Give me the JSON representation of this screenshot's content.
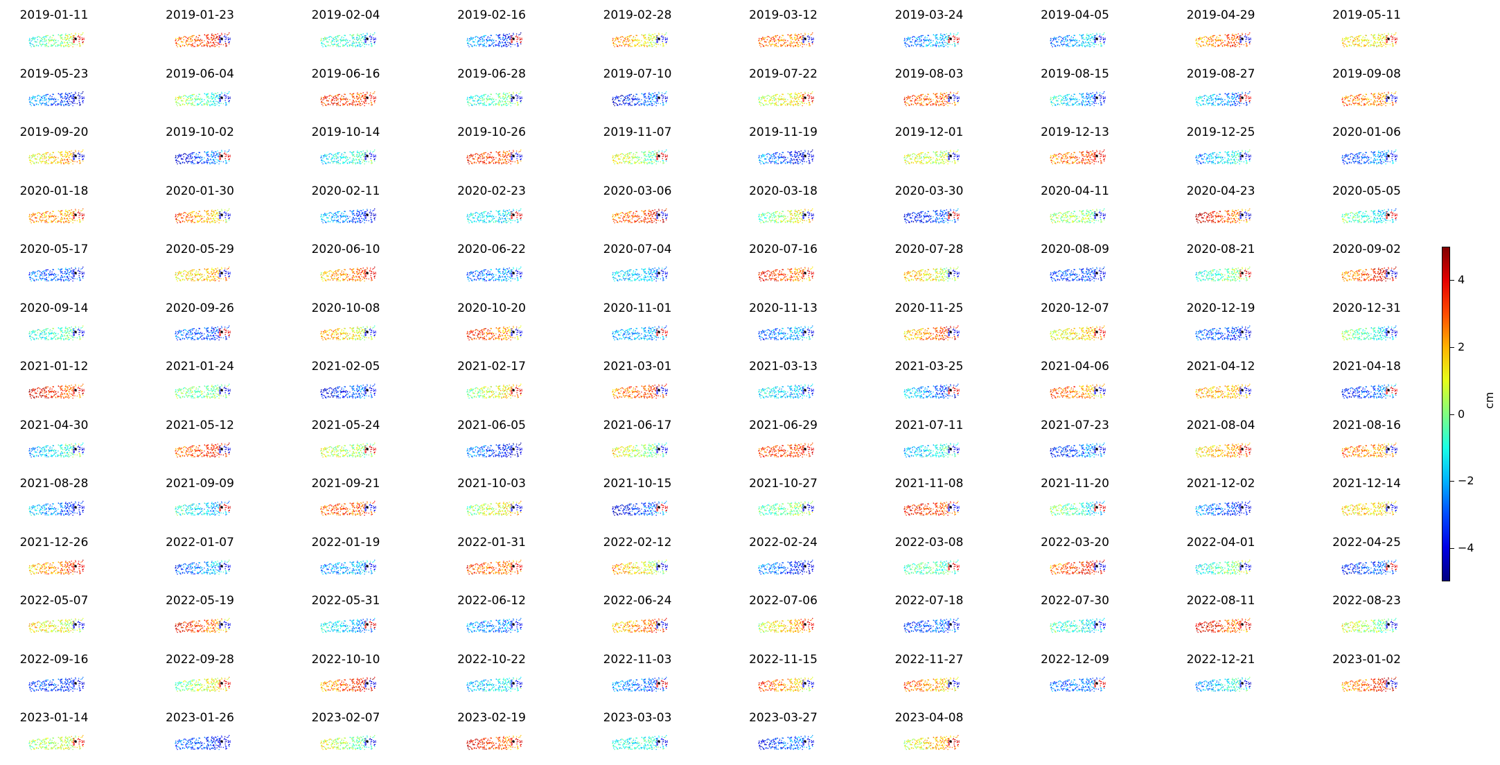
{
  "chart_data": {
    "type": "scatter",
    "layout": "small-multiples",
    "panels": [
      "2019-01-11",
      "2019-01-23",
      "2019-02-04",
      "2019-02-16",
      "2019-02-28",
      "2019-03-12",
      "2019-03-24",
      "2019-04-05",
      "2019-04-29",
      "2019-05-11",
      "2019-05-23",
      "2019-06-04",
      "2019-06-16",
      "2019-06-28",
      "2019-07-10",
      "2019-07-22",
      "2019-08-03",
      "2019-08-15",
      "2019-08-27",
      "2019-09-08",
      "2019-09-20",
      "2019-10-02",
      "2019-10-14",
      "2019-10-26",
      "2019-11-07",
      "2019-11-19",
      "2019-12-01",
      "2019-12-13",
      "2019-12-25",
      "2020-01-06",
      "2020-01-18",
      "2020-01-30",
      "2020-02-11",
      "2020-02-23",
      "2020-03-06",
      "2020-03-18",
      "2020-03-30",
      "2020-04-11",
      "2020-04-23",
      "2020-05-05",
      "2020-05-17",
      "2020-05-29",
      "2020-06-10",
      "2020-06-22",
      "2020-07-04",
      "2020-07-16",
      "2020-07-28",
      "2020-08-09",
      "2020-08-21",
      "2020-09-02",
      "2020-09-14",
      "2020-09-26",
      "2020-10-08",
      "2020-10-20",
      "2020-11-01",
      "2020-11-13",
      "2020-11-25",
      "2020-12-07",
      "2020-12-19",
      "2020-12-31",
      "2021-01-12",
      "2021-01-24",
      "2021-02-05",
      "2021-02-17",
      "2021-03-01",
      "2021-03-13",
      "2021-03-25",
      "2021-04-06",
      "2021-04-12",
      "2021-04-18",
      "2021-04-30",
      "2021-05-12",
      "2021-05-24",
      "2021-06-05",
      "2021-06-17",
      "2021-06-29",
      "2021-07-11",
      "2021-07-23",
      "2021-08-04",
      "2021-08-16",
      "2021-08-28",
      "2021-09-09",
      "2021-09-21",
      "2021-10-03",
      "2021-10-15",
      "2021-10-27",
      "2021-11-08",
      "2021-11-20",
      "2021-12-02",
      "2021-12-14",
      "2021-12-26",
      "2022-01-07",
      "2022-01-19",
      "2022-01-31",
      "2022-02-12",
      "2022-02-24",
      "2022-03-08",
      "2022-03-20",
      "2022-04-01",
      "2022-04-25",
      "2022-05-07",
      "2022-05-19",
      "2022-05-31",
      "2022-06-12",
      "2022-06-24",
      "2022-07-06",
      "2022-07-18",
      "2022-07-30",
      "2022-08-11",
      "2022-08-23",
      "2022-09-16",
      "2022-09-28",
      "2022-10-10",
      "2022-10-22",
      "2022-11-03",
      "2022-11-15",
      "2022-11-27",
      "2022-12-09",
      "2022-12-21",
      "2023-01-02",
      "2023-01-14",
      "2023-01-26",
      "2023-02-07",
      "2023-02-19",
      "2023-03-03",
      "2023-03-27",
      "2023-04-08"
    ],
    "colormap": "jet",
    "colorbar": {
      "label": "cm",
      "range": [
        -5,
        5
      ],
      "ticks": [
        4,
        2,
        0,
        -2,
        -4
      ],
      "tick_labels": [
        "4",
        "2",
        "0",
        "−2",
        "−4"
      ]
    },
    "grid": false
  }
}
